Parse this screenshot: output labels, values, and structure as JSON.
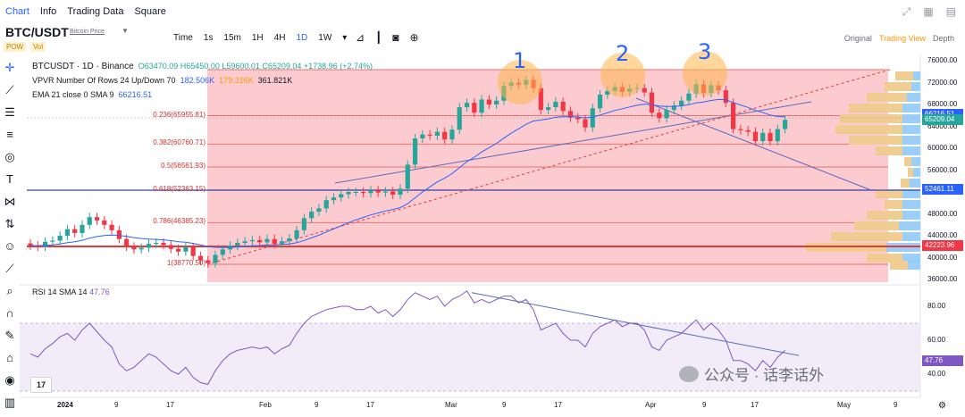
{
  "nav": {
    "items": [
      "Chart",
      "Info",
      "Trading Data",
      "Square"
    ]
  },
  "header": {
    "symbol": "BTC/USDT",
    "symbol_name": "Bitcoin Price",
    "badges": [
      "POW",
      "Vol"
    ],
    "intervals": [
      "Time",
      "1s",
      "15m",
      "1H",
      "4H",
      "1D",
      "1W"
    ],
    "active_interval": "1D",
    "view_modes": [
      "Original",
      "Trading View",
      "Depth"
    ],
    "active_view": "Trading View"
  },
  "legend": {
    "title": "BTCUSDT · 1D · Binance",
    "ohlc": "O63470.09 H65450.00 L59600.01 C65209.04 +1738.96 (+2.74%)",
    "vpvr_label": "VPVR Number Of Rows 24 Up/Down 70",
    "vpvr_v1": "182.506K",
    "vpvr_v2": "179.316K",
    "vpvr_v3": "361.821K",
    "ema_label": "EMA 21 close 0 SMA 9",
    "ema_value": "66216.51"
  },
  "rsi": {
    "label": "RSI 14 SMA 14",
    "value": "47.76",
    "ticks": [
      "80.00",
      "60.00",
      "40.00"
    ]
  },
  "fib_levels": [
    {
      "label": "0.236(65955.81)",
      "price": 65955.81
    },
    {
      "label": "0.382(60760.71)",
      "price": 60760.71
    },
    {
      "label": "0.5(56561.93)",
      "price": 56561.93
    },
    {
      "label": "0.618(52363.15)",
      "price": 52363.15
    },
    {
      "label": "0.786(46385.23)",
      "price": 46385.23
    },
    {
      "label": "1(38770.50)",
      "price": 38770.5
    }
  ],
  "price_axis": {
    "ticks": [
      "76000.00",
      "72000.00",
      "68000.00",
      "64000.00",
      "60000.00",
      "56000.00",
      "52000.00",
      "48000.00",
      "44000.00",
      "40000.00",
      "36000.00"
    ],
    "badges": [
      {
        "value": "66216.51",
        "color": "#2962ff"
      },
      {
        "value": "65209.04",
        "color": "#26a69a"
      },
      {
        "value": "52461.11",
        "color": "#2962ff"
      },
      {
        "value": "42223.96",
        "color": "#f23645"
      }
    ]
  },
  "waves": [
    "1",
    "2",
    "3"
  ],
  "x_axis": [
    "2024",
    "9",
    "17",
    "Feb",
    "9",
    "17",
    "Mar",
    "9",
    "17",
    "Apr",
    "9",
    "17",
    "May",
    "9"
  ],
  "watermark": "公众号 · 话李话外",
  "tv_logo": "17",
  "colors": {
    "up": "#26a69a",
    "down": "#f23645",
    "fib_zone": "#f7a1a8",
    "ema": "#2962ff",
    "vp_up": "#f7c325",
    "vp_down": "#2196f3",
    "rsi": "#7e57c2"
  }
}
